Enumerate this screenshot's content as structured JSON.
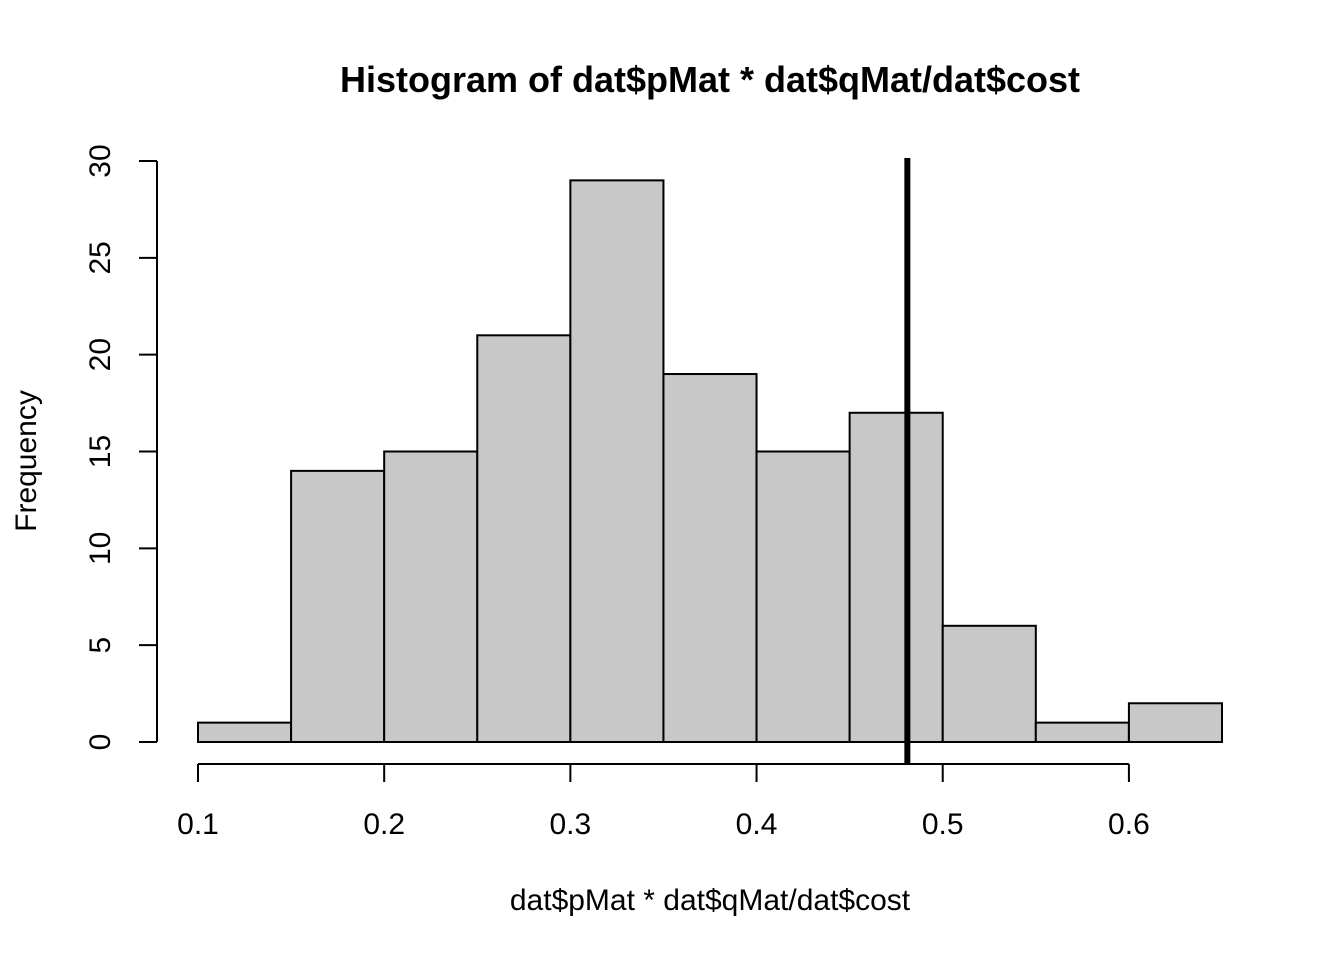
{
  "chart_data": {
    "type": "bar",
    "title": "Histogram of dat$pMat * dat$qMat/dat$cost",
    "xlabel": "dat$pMat * dat$qMat/dat$cost",
    "ylabel": "Frequency",
    "bins": [
      {
        "x0": 0.1,
        "x1": 0.15,
        "count": 1
      },
      {
        "x0": 0.15,
        "x1": 0.2,
        "count": 14
      },
      {
        "x0": 0.2,
        "x1": 0.25,
        "count": 15
      },
      {
        "x0": 0.25,
        "x1": 0.3,
        "count": 21
      },
      {
        "x0": 0.3,
        "x1": 0.35,
        "count": 29
      },
      {
        "x0": 0.35,
        "x1": 0.4,
        "count": 19
      },
      {
        "x0": 0.4,
        "x1": 0.45,
        "count": 15
      },
      {
        "x0": 0.45,
        "x1": 0.5,
        "count": 17
      },
      {
        "x0": 0.5,
        "x1": 0.55,
        "count": 6
      },
      {
        "x0": 0.55,
        "x1": 0.6,
        "count": 1
      },
      {
        "x0": 0.6,
        "x1": 0.65,
        "count": 2
      }
    ],
    "xticks": [
      0.1,
      0.2,
      0.3,
      0.4,
      0.5,
      0.6
    ],
    "xtick_labels": [
      "0.1",
      "0.2",
      "0.3",
      "0.4",
      "0.5",
      "0.6"
    ],
    "yticks": [
      0,
      5,
      10,
      15,
      20,
      25,
      30
    ],
    "ytick_labels": [
      "0",
      "5",
      "10",
      "15",
      "20",
      "25",
      "30"
    ],
    "xlim": [
      0.1,
      0.65
    ],
    "ylim": [
      0,
      30
    ],
    "vline_x": 0.481,
    "bar_color": "#c8c8c8",
    "line_color": "#000000",
    "grid": false,
    "legend": "none"
  }
}
